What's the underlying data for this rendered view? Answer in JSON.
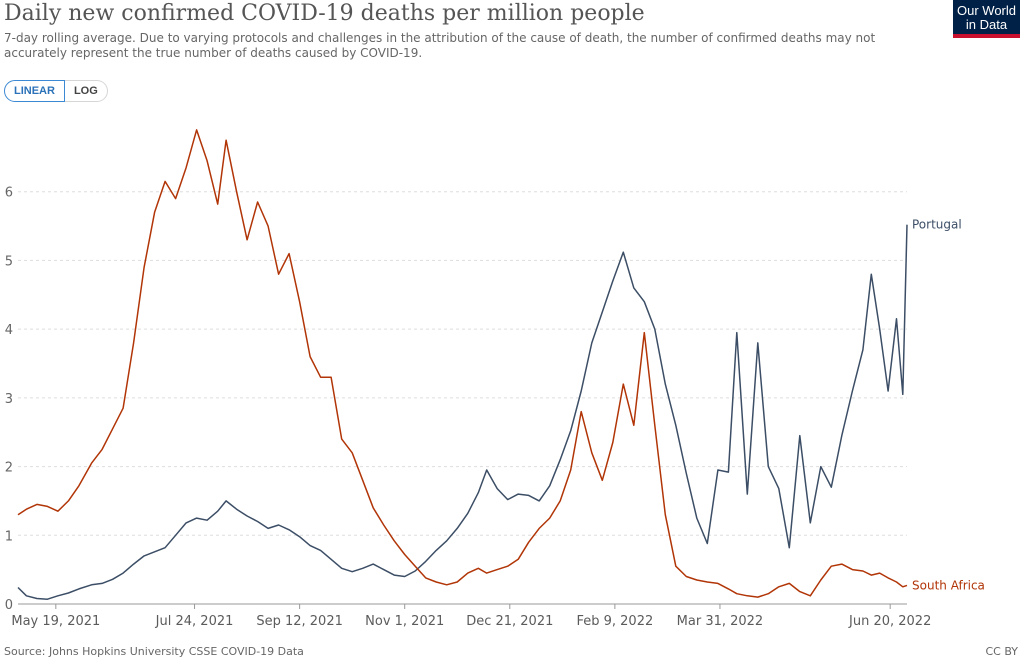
{
  "header": {
    "title": "Daily new confirmed COVID-19 deaths per million people",
    "subtitle": "7-day rolling average. Due to varying protocols and challenges in the attribution of the cause of death, the number of confirmed deaths may not accurately represent the true number of deaths caused by COVID-19."
  },
  "logo": {
    "line1": "Our World",
    "line2": "in Data",
    "background": "#002147",
    "accent": "#c8102e"
  },
  "scale_toggle": {
    "linear_label": "LINEAR",
    "log_label": "LOG",
    "selected": "LINEAR"
  },
  "footer": {
    "source": "Source: Johns Hopkins University CSSE COVID-19 Data",
    "license": "CC BY"
  },
  "chart_data": {
    "type": "line",
    "title": "Daily new confirmed COVID-19 deaths per million people",
    "x_start": "2021-05-01",
    "x_end": "2022-06-28",
    "xticks": [
      "May 19, 2021",
      "Jul 24, 2021",
      "Sep 12, 2021",
      "Nov 1, 2021",
      "Dec 21, 2021",
      "Feb 9, 2022",
      "Mar 31, 2022",
      "Jun 20, 2022"
    ],
    "yticks": [
      0,
      1,
      2,
      3,
      4,
      5,
      6
    ],
    "ylim": [
      0,
      7
    ],
    "grid": "horizontal dashed",
    "legend": "inline labels at line ends",
    "series": [
      {
        "name": "Portugal",
        "color": "#3c4e66",
        "points": [
          [
            "2021-05-01",
            0.24
          ],
          [
            "2021-05-05",
            0.12
          ],
          [
            "2021-05-10",
            0.08
          ],
          [
            "2021-05-15",
            0.07
          ],
          [
            "2021-05-20",
            0.12
          ],
          [
            "2021-05-25",
            0.16
          ],
          [
            "2021-05-30",
            0.22
          ],
          [
            "2021-06-05",
            0.28
          ],
          [
            "2021-06-10",
            0.3
          ],
          [
            "2021-06-15",
            0.36
          ],
          [
            "2021-06-20",
            0.45
          ],
          [
            "2021-06-25",
            0.58
          ],
          [
            "2021-06-30",
            0.7
          ],
          [
            "2021-07-05",
            0.76
          ],
          [
            "2021-07-10",
            0.82
          ],
          [
            "2021-07-15",
            1.0
          ],
          [
            "2021-07-20",
            1.18
          ],
          [
            "2021-07-25",
            1.25
          ],
          [
            "2021-07-30",
            1.22
          ],
          [
            "2021-08-04",
            1.35
          ],
          [
            "2021-08-08",
            1.5
          ],
          [
            "2021-08-13",
            1.38
          ],
          [
            "2021-08-18",
            1.28
          ],
          [
            "2021-08-23",
            1.2
          ],
          [
            "2021-08-28",
            1.1
          ],
          [
            "2021-09-02",
            1.15
          ],
          [
            "2021-09-07",
            1.08
          ],
          [
            "2021-09-12",
            0.98
          ],
          [
            "2021-09-17",
            0.85
          ],
          [
            "2021-09-22",
            0.78
          ],
          [
            "2021-09-27",
            0.65
          ],
          [
            "2021-10-02",
            0.52
          ],
          [
            "2021-10-07",
            0.47
          ],
          [
            "2021-10-12",
            0.52
          ],
          [
            "2021-10-17",
            0.58
          ],
          [
            "2021-10-22",
            0.5
          ],
          [
            "2021-10-27",
            0.42
          ],
          [
            "2021-11-01",
            0.4
          ],
          [
            "2021-11-06",
            0.48
          ],
          [
            "2021-11-11",
            0.62
          ],
          [
            "2021-11-16",
            0.78
          ],
          [
            "2021-11-21",
            0.92
          ],
          [
            "2021-11-26",
            1.1
          ],
          [
            "2021-12-01",
            1.32
          ],
          [
            "2021-12-06",
            1.62
          ],
          [
            "2021-12-10",
            1.95
          ],
          [
            "2021-12-15",
            1.68
          ],
          [
            "2021-12-20",
            1.52
          ],
          [
            "2021-12-25",
            1.6
          ],
          [
            "2021-12-30",
            1.58
          ],
          [
            "2022-01-04",
            1.5
          ],
          [
            "2022-01-09",
            1.72
          ],
          [
            "2022-01-14",
            2.1
          ],
          [
            "2022-01-19",
            2.52
          ],
          [
            "2022-01-24",
            3.1
          ],
          [
            "2022-01-29",
            3.8
          ],
          [
            "2022-02-03",
            4.25
          ],
          [
            "2022-02-08",
            4.7
          ],
          [
            "2022-02-13",
            5.12
          ],
          [
            "2022-02-18",
            4.6
          ],
          [
            "2022-02-23",
            4.4
          ],
          [
            "2022-02-28",
            4.0
          ],
          [
            "2022-03-05",
            3.2
          ],
          [
            "2022-03-10",
            2.6
          ],
          [
            "2022-03-15",
            1.9
          ],
          [
            "2022-03-20",
            1.25
          ],
          [
            "2022-03-25",
            0.88
          ],
          [
            "2022-03-30",
            1.95
          ],
          [
            "2022-04-04",
            1.92
          ],
          [
            "2022-04-08",
            3.95
          ],
          [
            "2022-04-13",
            1.6
          ],
          [
            "2022-04-18",
            3.8
          ],
          [
            "2022-04-23",
            2.0
          ],
          [
            "2022-04-28",
            1.68
          ],
          [
            "2022-05-03",
            0.82
          ],
          [
            "2022-05-08",
            2.45
          ],
          [
            "2022-05-13",
            1.18
          ],
          [
            "2022-05-18",
            2.0
          ],
          [
            "2022-05-23",
            1.7
          ],
          [
            "2022-05-28",
            2.45
          ],
          [
            "2022-06-02",
            3.1
          ],
          [
            "2022-06-07",
            3.7
          ],
          [
            "2022-06-11",
            4.8
          ],
          [
            "2022-06-15",
            4.0
          ],
          [
            "2022-06-19",
            3.1
          ],
          [
            "2022-06-23",
            4.15
          ],
          [
            "2022-06-26",
            3.05
          ],
          [
            "2022-06-28",
            5.52
          ]
        ]
      },
      {
        "name": "South Africa",
        "color": "#b13507",
        "points": [
          [
            "2021-05-01",
            1.3
          ],
          [
            "2021-05-05",
            1.38
          ],
          [
            "2021-05-10",
            1.45
          ],
          [
            "2021-05-15",
            1.42
          ],
          [
            "2021-05-20",
            1.35
          ],
          [
            "2021-05-25",
            1.5
          ],
          [
            "2021-05-30",
            1.72
          ],
          [
            "2021-06-05",
            2.05
          ],
          [
            "2021-06-10",
            2.25
          ],
          [
            "2021-06-15",
            2.55
          ],
          [
            "2021-06-20",
            2.85
          ],
          [
            "2021-06-25",
            3.8
          ],
          [
            "2021-06-30",
            4.9
          ],
          [
            "2021-07-05",
            5.7
          ],
          [
            "2021-07-10",
            6.15
          ],
          [
            "2021-07-15",
            5.9
          ],
          [
            "2021-07-20",
            6.35
          ],
          [
            "2021-07-25",
            6.9
          ],
          [
            "2021-07-30",
            6.45
          ],
          [
            "2021-08-04",
            5.82
          ],
          [
            "2021-08-08",
            6.75
          ],
          [
            "2021-08-13",
            6.0
          ],
          [
            "2021-08-18",
            5.3
          ],
          [
            "2021-08-23",
            5.85
          ],
          [
            "2021-08-28",
            5.5
          ],
          [
            "2021-09-02",
            4.8
          ],
          [
            "2021-09-07",
            5.1
          ],
          [
            "2021-09-12",
            4.4
          ],
          [
            "2021-09-17",
            3.6
          ],
          [
            "2021-09-22",
            3.3
          ],
          [
            "2021-09-27",
            3.3
          ],
          [
            "2021-10-02",
            2.4
          ],
          [
            "2021-10-07",
            2.2
          ],
          [
            "2021-10-12",
            1.8
          ],
          [
            "2021-10-17",
            1.4
          ],
          [
            "2021-10-22",
            1.15
          ],
          [
            "2021-10-27",
            0.92
          ],
          [
            "2021-11-01",
            0.72
          ],
          [
            "2021-11-06",
            0.55
          ],
          [
            "2021-11-11",
            0.38
          ],
          [
            "2021-11-16",
            0.32
          ],
          [
            "2021-11-21",
            0.28
          ],
          [
            "2021-11-26",
            0.32
          ],
          [
            "2021-12-01",
            0.45
          ],
          [
            "2021-12-06",
            0.52
          ],
          [
            "2021-12-10",
            0.45
          ],
          [
            "2021-12-15",
            0.5
          ],
          [
            "2021-12-20",
            0.55
          ],
          [
            "2021-12-25",
            0.65
          ],
          [
            "2021-12-30",
            0.9
          ],
          [
            "2022-01-04",
            1.1
          ],
          [
            "2022-01-09",
            1.25
          ],
          [
            "2022-01-14",
            1.5
          ],
          [
            "2022-01-19",
            1.95
          ],
          [
            "2022-01-24",
            2.8
          ],
          [
            "2022-01-29",
            2.2
          ],
          [
            "2022-02-03",
            1.8
          ],
          [
            "2022-02-08",
            2.35
          ],
          [
            "2022-02-13",
            3.2
          ],
          [
            "2022-02-18",
            2.6
          ],
          [
            "2022-02-23",
            3.95
          ],
          [
            "2022-02-28",
            2.6
          ],
          [
            "2022-03-05",
            1.3
          ],
          [
            "2022-03-10",
            0.55
          ],
          [
            "2022-03-15",
            0.4
          ],
          [
            "2022-03-20",
            0.35
          ],
          [
            "2022-03-25",
            0.32
          ],
          [
            "2022-03-30",
            0.3
          ],
          [
            "2022-04-04",
            0.22
          ],
          [
            "2022-04-08",
            0.15
          ],
          [
            "2022-04-13",
            0.12
          ],
          [
            "2022-04-18",
            0.1
          ],
          [
            "2022-04-23",
            0.15
          ],
          [
            "2022-04-28",
            0.25
          ],
          [
            "2022-05-03",
            0.3
          ],
          [
            "2022-05-08",
            0.18
          ],
          [
            "2022-05-13",
            0.12
          ],
          [
            "2022-05-18",
            0.35
          ],
          [
            "2022-05-23",
            0.55
          ],
          [
            "2022-05-28",
            0.58
          ],
          [
            "2022-06-02",
            0.5
          ],
          [
            "2022-06-07",
            0.48
          ],
          [
            "2022-06-11",
            0.42
          ],
          [
            "2022-06-15",
            0.45
          ],
          [
            "2022-06-19",
            0.38
          ],
          [
            "2022-06-23",
            0.32
          ],
          [
            "2022-06-26",
            0.25
          ],
          [
            "2022-06-28",
            0.27
          ]
        ]
      }
    ]
  }
}
